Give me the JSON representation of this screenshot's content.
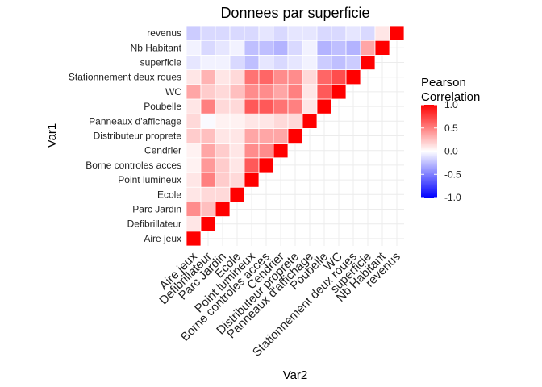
{
  "chart_data": {
    "type": "heatmap",
    "title": "Donnees par superficie",
    "xlabel": "Var2",
    "ylabel": "Var1",
    "variables": [
      "Aire jeux",
      "Defibrillateur",
      "Parc Jardin",
      "Ecole",
      "Point lumineux",
      "Borne controles acces",
      "Cendrier",
      "Distributeur proprete",
      "Panneaux d'affichage",
      "Poubelle",
      "WC",
      "Stationnement deux roues",
      "superficie",
      "Nb Habitant",
      "revenus"
    ],
    "triangle": "upper",
    "matrix": [
      [
        1.0,
        0.1,
        0.45,
        0.1,
        0.1,
        0.05,
        0.05,
        0.2,
        0.15,
        0.1,
        0.35,
        0.1,
        -0.1,
        -0.05,
        -0.2
      ],
      [
        null,
        1.0,
        0.25,
        0.15,
        0.5,
        0.4,
        0.35,
        0.25,
        -0.02,
        0.5,
        0.2,
        0.3,
        -0.05,
        -0.15,
        -0.15
      ],
      [
        null,
        null,
        1.0,
        0.15,
        0.2,
        0.2,
        0.2,
        0.1,
        0.05,
        0.15,
        0.15,
        0.1,
        -0.05,
        -0.1,
        -0.15
      ],
      [
        null,
        null,
        null,
        1.0,
        0.15,
        0.1,
        0.1,
        0.1,
        0.05,
        0.15,
        0.25,
        0.15,
        -0.15,
        -0.05,
        -0.15
      ],
      [
        null,
        null,
        null,
        null,
        1.0,
        0.65,
        0.45,
        0.35,
        0.1,
        0.65,
        0.45,
        0.55,
        -0.25,
        -0.25,
        -0.15
      ],
      [
        null,
        null,
        null,
        null,
        null,
        1.0,
        0.45,
        0.35,
        0.1,
        0.65,
        0.45,
        0.6,
        -0.1,
        -0.25,
        -0.1
      ],
      [
        null,
        null,
        null,
        null,
        null,
        null,
        1.0,
        0.35,
        0.15,
        0.55,
        0.35,
        0.45,
        -0.15,
        -0.3,
        -0.15
      ],
      [
        null,
        null,
        null,
        null,
        null,
        null,
        null,
        1.0,
        0.15,
        0.5,
        0.5,
        0.45,
        -0.1,
        -0.15,
        -0.1
      ],
      [
        null,
        null,
        null,
        null,
        null,
        null,
        null,
        null,
        1.0,
        0.1,
        0.1,
        0.15,
        -0.05,
        -0.05,
        -0.1
      ],
      [
        null,
        null,
        null,
        null,
        null,
        null,
        null,
        null,
        null,
        1.0,
        0.65,
        0.6,
        -0.2,
        -0.3,
        -0.15
      ],
      [
        null,
        null,
        null,
        null,
        null,
        null,
        null,
        null,
        null,
        null,
        1.0,
        0.7,
        -0.25,
        -0.25,
        -0.15
      ],
      [
        null,
        null,
        null,
        null,
        null,
        null,
        null,
        null,
        null,
        null,
        null,
        1.0,
        -0.2,
        -0.3,
        -0.1
      ],
      [
        null,
        null,
        null,
        null,
        null,
        null,
        null,
        null,
        null,
        null,
        null,
        null,
        1.0,
        0.35,
        -0.15
      ],
      [
        null,
        null,
        null,
        null,
        null,
        null,
        null,
        null,
        null,
        null,
        null,
        null,
        null,
        1.0,
        0.1
      ],
      [
        null,
        null,
        null,
        null,
        null,
        null,
        null,
        null,
        null,
        null,
        null,
        null,
        null,
        null,
        1.0
      ]
    ],
    "color_scale": {
      "low": "#0000ff",
      "mid": "#ffffff",
      "high": "#ff0000",
      "limits": [
        -1,
        1
      ],
      "breaks": [
        1.0,
        0.5,
        0.0,
        -0.5,
        -1.0
      ],
      "break_labels": [
        "1.0",
        "0.5",
        "0.0",
        "-0.5",
        "-1.0"
      ]
    },
    "legend": {
      "title_line1": "Pearson",
      "title_line2": "Correlation",
      "placement": "right"
    },
    "grid": true
  }
}
